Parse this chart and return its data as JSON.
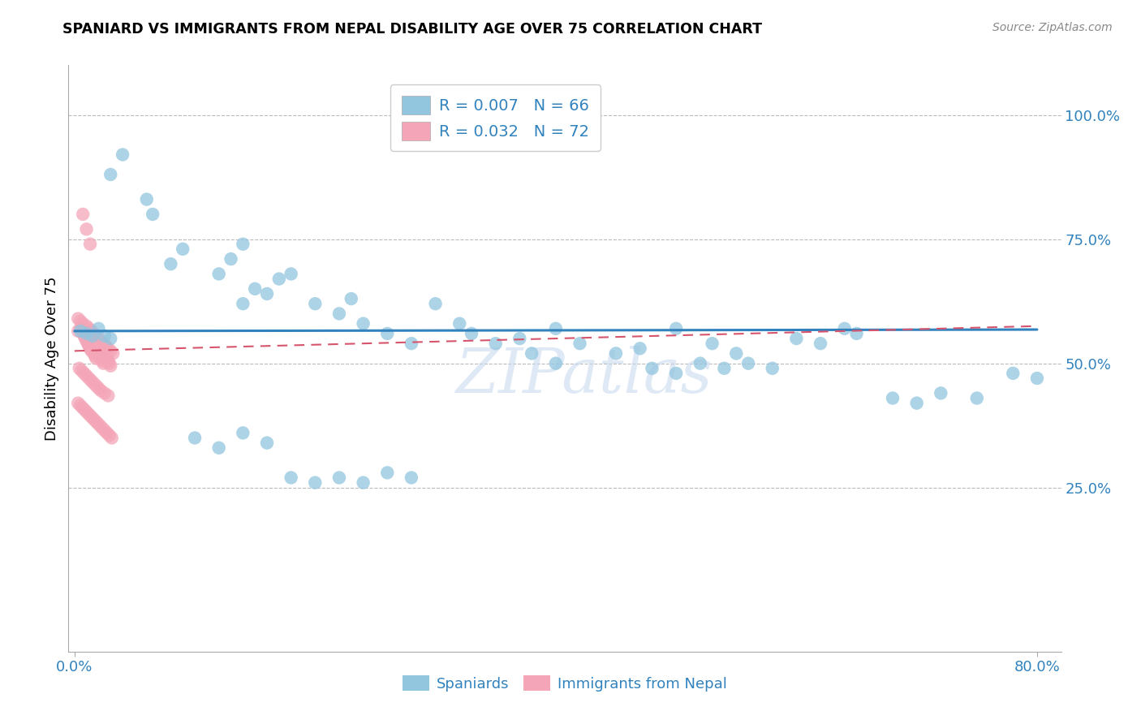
{
  "title": "SPANIARD VS IMMIGRANTS FROM NEPAL DISABILITY AGE OVER 75 CORRELATION CHART",
  "source": "Source: ZipAtlas.com",
  "ylabel": "Disability Age Over 75",
  "ytick_labels": [
    "100.0%",
    "75.0%",
    "50.0%",
    "25.0%"
  ],
  "ytick_values": [
    1.0,
    0.75,
    0.5,
    0.25
  ],
  "xlim": [
    -0.005,
    0.82
  ],
  "ylim": [
    -0.08,
    1.1
  ],
  "watermark": "ZIPatlas",
  "blue_color": "#92c5de",
  "pink_color": "#f4a6b8",
  "blue_line_color": "#3182bd",
  "pink_line_color": "#d6556d",
  "blue_trend_start_y": 0.565,
  "blue_trend_end_y": 0.568,
  "pink_trend_start_y": 0.525,
  "pink_trend_end_y": 0.575,
  "spaniards_x": [
    0.005,
    0.01,
    0.015,
    0.02,
    0.025,
    0.03,
    0.03,
    0.04,
    0.06,
    0.065,
    0.08,
    0.09,
    0.12,
    0.13,
    0.14,
    0.14,
    0.15,
    0.16,
    0.17,
    0.18,
    0.2,
    0.22,
    0.23,
    0.24,
    0.26,
    0.28,
    0.3,
    0.32,
    0.33,
    0.35,
    0.37,
    0.4,
    0.42,
    0.45,
    0.47,
    0.5,
    0.53,
    0.55,
    0.6,
    0.62,
    0.64,
    0.65,
    0.68,
    0.7,
    0.72,
    0.75,
    0.78,
    0.8,
    0.38,
    0.4,
    0.48,
    0.5,
    0.52,
    0.54,
    0.56,
    0.58,
    0.18,
    0.2,
    0.22,
    0.24,
    0.26,
    0.28,
    0.1,
    0.12,
    0.14,
    0.16
  ],
  "spaniards_y": [
    0.565,
    0.56,
    0.555,
    0.57,
    0.555,
    0.55,
    0.88,
    0.92,
    0.83,
    0.8,
    0.7,
    0.73,
    0.68,
    0.71,
    0.74,
    0.62,
    0.65,
    0.64,
    0.67,
    0.68,
    0.62,
    0.6,
    0.63,
    0.58,
    0.56,
    0.54,
    0.62,
    0.58,
    0.56,
    0.54,
    0.55,
    0.57,
    0.54,
    0.52,
    0.53,
    0.57,
    0.54,
    0.52,
    0.55,
    0.54,
    0.57,
    0.56,
    0.43,
    0.42,
    0.44,
    0.43,
    0.48,
    0.47,
    0.52,
    0.5,
    0.49,
    0.48,
    0.5,
    0.49,
    0.5,
    0.49,
    0.27,
    0.26,
    0.27,
    0.26,
    0.28,
    0.27,
    0.35,
    0.33,
    0.36,
    0.34
  ],
  "nepal_x": [
    0.003,
    0.005,
    0.007,
    0.008,
    0.009,
    0.01,
    0.011,
    0.012,
    0.013,
    0.014,
    0.015,
    0.016,
    0.017,
    0.018,
    0.019,
    0.02,
    0.021,
    0.022,
    0.023,
    0.024,
    0.025,
    0.026,
    0.027,
    0.028,
    0.029,
    0.03,
    0.003,
    0.005,
    0.007,
    0.01,
    0.012,
    0.014,
    0.016,
    0.018,
    0.02,
    0.022,
    0.024,
    0.026,
    0.028,
    0.03,
    0.032,
    0.004,
    0.006,
    0.008,
    0.01,
    0.012,
    0.014,
    0.016,
    0.018,
    0.02,
    0.022,
    0.025,
    0.028,
    0.003,
    0.005,
    0.007,
    0.009,
    0.011,
    0.013,
    0.015,
    0.017,
    0.019,
    0.021,
    0.023,
    0.025,
    0.027,
    0.029,
    0.031,
    0.007,
    0.01,
    0.013
  ],
  "nepal_y": [
    0.565,
    0.57,
    0.56,
    0.555,
    0.55,
    0.545,
    0.54,
    0.535,
    0.53,
    0.525,
    0.53,
    0.52,
    0.515,
    0.51,
    0.525,
    0.52,
    0.515,
    0.51,
    0.505,
    0.5,
    0.52,
    0.515,
    0.51,
    0.505,
    0.5,
    0.495,
    0.59,
    0.585,
    0.58,
    0.575,
    0.57,
    0.565,
    0.56,
    0.555,
    0.55,
    0.545,
    0.54,
    0.535,
    0.53,
    0.525,
    0.52,
    0.49,
    0.485,
    0.48,
    0.475,
    0.47,
    0.465,
    0.46,
    0.455,
    0.45,
    0.445,
    0.44,
    0.435,
    0.42,
    0.415,
    0.41,
    0.405,
    0.4,
    0.395,
    0.39,
    0.385,
    0.38,
    0.375,
    0.37,
    0.365,
    0.36,
    0.355,
    0.35,
    0.8,
    0.77,
    0.74
  ]
}
